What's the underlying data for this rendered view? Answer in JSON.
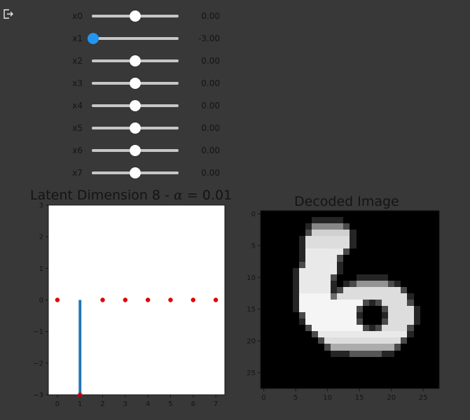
{
  "app": {
    "exit_icon": "exit-icon"
  },
  "sliders": [
    {
      "label": "x0",
      "value": 0.0,
      "display": "0.00",
      "min": -3,
      "max": 3,
      "active": false
    },
    {
      "label": "x1",
      "value": -3.0,
      "display": "-3.00",
      "min": -3,
      "max": 3,
      "active": true
    },
    {
      "label": "x2",
      "value": 0.0,
      "display": "0.00",
      "min": -3,
      "max": 3,
      "active": false
    },
    {
      "label": "x3",
      "value": 0.0,
      "display": "0.00",
      "min": -3,
      "max": 3,
      "active": false
    },
    {
      "label": "x4",
      "value": 0.0,
      "display": "0.00",
      "min": -3,
      "max": 3,
      "active": false
    },
    {
      "label": "x5",
      "value": 0.0,
      "display": "0.00",
      "min": -3,
      "max": 3,
      "active": false
    },
    {
      "label": "x6",
      "value": 0.0,
      "display": "0.00",
      "min": -3,
      "max": 3,
      "active": false
    },
    {
      "label": "x7",
      "value": 0.0,
      "display": "0.00",
      "min": -3,
      "max": 3,
      "active": false
    }
  ],
  "latent_plot": {
    "title_prefix": "Latent Dimension 8 - ",
    "title_symbol": "α",
    "title_suffix": " = 0.01"
  },
  "decoded_plot": {
    "title": "Decoded Image"
  },
  "chart_data": [
    {
      "type": "bar",
      "title": "Latent Dimension 8 - α = 0.01",
      "x": [
        0,
        1,
        2,
        3,
        4,
        5,
        6,
        7
      ],
      "values": [
        0,
        -3,
        0,
        0,
        0,
        0,
        0,
        0
      ],
      "markers": [
        0,
        -3,
        0,
        0,
        0,
        0,
        0,
        0
      ],
      "xlim": [
        -0.4,
        7.4
      ],
      "ylim": [
        -3,
        3
      ],
      "xticks": [
        "0",
        "1",
        "2",
        "3",
        "4",
        "5",
        "6",
        "7"
      ],
      "yticks": [
        "−3",
        "−2",
        "−1",
        "0",
        "1",
        "2",
        "3"
      ],
      "bar_color": "#1f77b4",
      "marker_color": "#e00000"
    },
    {
      "type": "heatmap",
      "title": "Decoded Image",
      "colormap": "gray",
      "size": [
        28,
        28
      ],
      "xticks": [
        "0",
        "5",
        "10",
        "15",
        "20",
        "25"
      ],
      "yticks": [
        "0",
        "5",
        "10",
        "15",
        "20",
        "25"
      ],
      "rows": [
        "0000000000000000000000000000",
        "0000000000000000000000000000",
        "0000000000000000000000000000",
        "0000000000000000000000000000",
        "0000000000000000000000000000",
        "0000000000000000000000000000",
        "0000000000000000000000000000",
        "0000000000000000000000000000",
        "0000000000000000000000000000",
        "0000000000000000000000000000",
        "0000000000000000000000000000",
        "0000000000000000000000000000",
        "0000000000000000000000000000",
        "0000000000000000000000000000",
        "0000000000000000000000000000",
        "0000000000000000000000000000",
        "0000000000000000000000000000",
        "0000000000000000000000000000",
        "0000000000000000000000000000",
        "0000000000000000000000000000",
        "0000000000000000000000000000",
        "0000000000000000000000000000",
        "0000000000000000000000000000",
        "0000000000000000000000000000",
        "0000000000000000000000000000",
        "0000000000000000000000000000",
        "0000000000000000000000000000",
        "0000000000000000000000000000"
      ],
      "strokes": [
        {
          "r": 2,
          "c0": 8,
          "c1": 12,
          "v": 0.55
        },
        {
          "r": 3,
          "c0": 8,
          "c1": 13,
          "v": 0.85
        },
        {
          "r": 4,
          "c0": 7,
          "c1": 13,
          "v": 0.9
        },
        {
          "r": 5,
          "c0": 7,
          "c1": 13,
          "v": 0.9
        },
        {
          "r": 6,
          "c0": 7,
          "c1": 12,
          "v": 0.95
        },
        {
          "r": 7,
          "c0": 7,
          "c1": 11,
          "v": 0.95
        },
        {
          "r": 8,
          "c0": 7,
          "c1": 11,
          "v": 0.95
        },
        {
          "r": 9,
          "c0": 6,
          "c1": 11,
          "v": 0.95
        },
        {
          "r": 10,
          "c0": 6,
          "c1": 10,
          "v": 0.95
        },
        {
          "r": 11,
          "c0": 6,
          "c1": 10,
          "v": 0.95
        },
        {
          "r": 11,
          "c0": 15,
          "c1": 19,
          "v": 0.6
        },
        {
          "r": 12,
          "c0": 6,
          "c1": 10,
          "v": 0.95
        },
        {
          "r": 12,
          "c0": 13,
          "c1": 21,
          "v": 0.9
        },
        {
          "r": 13,
          "c0": 6,
          "c1": 10,
          "v": 1.0
        },
        {
          "r": 13,
          "c0": 12,
          "c1": 22,
          "v": 0.9
        },
        {
          "r": 14,
          "c0": 6,
          "c1": 15,
          "v": 1.0
        },
        {
          "r": 14,
          "c0": 19,
          "c1": 22,
          "v": 0.9
        },
        {
          "r": 15,
          "c0": 6,
          "c1": 14,
          "v": 1.0
        },
        {
          "r": 15,
          "c0": 20,
          "c1": 23,
          "v": 0.9
        },
        {
          "r": 16,
          "c0": 7,
          "c1": 14,
          "v": 1.0
        },
        {
          "r": 16,
          "c0": 20,
          "c1": 23,
          "v": 0.9
        },
        {
          "r": 17,
          "c0": 7,
          "c1": 14,
          "v": 1.0
        },
        {
          "r": 17,
          "c0": 20,
          "c1": 23,
          "v": 0.9
        },
        {
          "r": 18,
          "c0": 8,
          "c1": 15,
          "v": 1.0
        },
        {
          "r": 18,
          "c0": 19,
          "c1": 22,
          "v": 0.9
        },
        {
          "r": 19,
          "c0": 9,
          "c1": 22,
          "v": 0.95
        },
        {
          "r": 20,
          "c0": 10,
          "c1": 21,
          "v": 0.9
        },
        {
          "r": 21,
          "c0": 11,
          "c1": 20,
          "v": 0.7
        },
        {
          "r": 22,
          "c0": 14,
          "c1": 18,
          "v": 0.35
        }
      ]
    }
  ]
}
